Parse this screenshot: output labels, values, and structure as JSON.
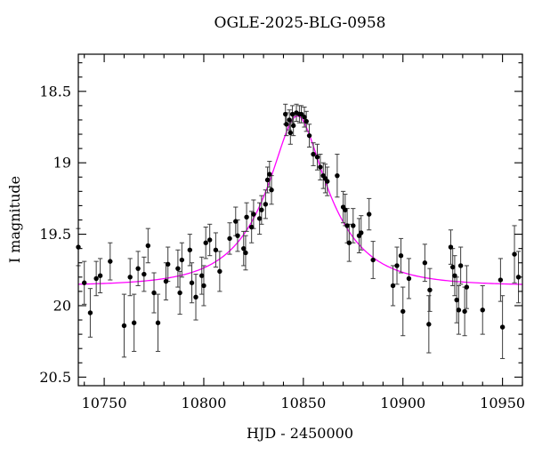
{
  "title": "OGLE-2025-BLG-0958",
  "chart_data": {
    "type": "scatter",
    "title": "OGLE-2025-BLG-0958",
    "xlabel": "HJD - 2450000",
    "ylabel": "I magnitude",
    "xlim": [
      10737,
      10960
    ],
    "ylim": [
      18.24,
      20.56
    ],
    "y_axis_inverted_magnitude": true,
    "grid": false,
    "legend": null,
    "x_major_ticks": [
      10750,
      10800,
      10850,
      10900,
      10950
    ],
    "x_major_tick_labels": [
      "10750",
      "10800",
      "10850",
      "10900",
      "10950"
    ],
    "x_minor_tick_step": 10,
    "y_major_ticks": [
      18.5,
      19.0,
      19.5,
      20.0,
      20.5
    ],
    "y_major_tick_labels": [
      "18.5",
      "19",
      "19.5",
      "20",
      "20.5"
    ],
    "y_minor_tick_step": 0.1,
    "colors": {
      "marker": "#000000",
      "errorbar": "#3c3c3c",
      "model_curve": "#ff00ff",
      "frame": "#000000",
      "background": "#ffffff"
    },
    "model": {
      "type": "paczynski_point_lens",
      "t0": 10847,
      "tE": 31,
      "u0": 0.35,
      "baseline_mag": 19.86,
      "peak_mag": 18.67,
      "sample_step_days": 1
    },
    "points_format": [
      "hjd_minus_2450000",
      "i_magnitude",
      "error_mag"
    ],
    "points": [
      [
        10737,
        19.59,
        0.13
      ],
      [
        10740,
        19.84,
        0.15
      ],
      [
        10743,
        20.05,
        0.17
      ],
      [
        10746,
        19.81,
        0.12
      ],
      [
        10748,
        19.79,
        0.12
      ],
      [
        10753,
        19.69,
        0.13
      ],
      [
        10760,
        20.14,
        0.22
      ],
      [
        10763,
        19.8,
        0.13
      ],
      [
        10765,
        20.12,
        0.2
      ],
      [
        10767,
        19.74,
        0.12
      ],
      [
        10770,
        19.78,
        0.12
      ],
      [
        10772,
        19.58,
        0.12
      ],
      [
        10775,
        19.91,
        0.14
      ],
      [
        10777,
        20.12,
        0.2
      ],
      [
        10781,
        19.83,
        0.13
      ],
      [
        10782,
        19.71,
        0.12
      ],
      [
        10787,
        19.74,
        0.13
      ],
      [
        10788,
        19.91,
        0.15
      ],
      [
        10789,
        19.68,
        0.12
      ],
      [
        10793,
        19.61,
        0.11
      ],
      [
        10794,
        19.84,
        0.14
      ],
      [
        10796,
        19.94,
        0.16
      ],
      [
        10799,
        19.79,
        0.13
      ],
      [
        10800,
        19.86,
        0.14
      ],
      [
        10801,
        19.56,
        0.11
      ],
      [
        10803,
        19.54,
        0.11
      ],
      [
        10806,
        19.61,
        0.12
      ],
      [
        10808,
        19.76,
        0.14
      ],
      [
        10813,
        19.53,
        0.11
      ],
      [
        10816,
        19.41,
        0.1
      ],
      [
        10817,
        19.51,
        0.11
      ],
      [
        10820,
        19.6,
        0.12
      ],
      [
        10821,
        19.63,
        0.12
      ],
      [
        10821.5,
        19.38,
        0.1
      ],
      [
        10824,
        19.45,
        0.11
      ],
      [
        10825,
        19.36,
        0.1
      ],
      [
        10828,
        19.39,
        0.11
      ],
      [
        10829,
        19.33,
        0.1
      ],
      [
        10831,
        19.29,
        0.1
      ],
      [
        10832,
        19.12,
        0.09
      ],
      [
        10833,
        19.08,
        0.09
      ],
      [
        10834,
        19.19,
        0.1
      ],
      [
        10841,
        18.66,
        0.07
      ],
      [
        10841.5,
        18.73,
        0.08
      ],
      [
        10843,
        18.7,
        0.07
      ],
      [
        10843.5,
        18.79,
        0.08
      ],
      [
        10844.5,
        18.66,
        0.06
      ],
      [
        10845,
        18.74,
        0.07
      ],
      [
        10846.5,
        18.65,
        0.06
      ],
      [
        10848,
        18.66,
        0.06
      ],
      [
        10849,
        18.66,
        0.06
      ],
      [
        10850.5,
        18.68,
        0.07
      ],
      [
        10851.5,
        18.71,
        0.07
      ],
      [
        10853,
        18.81,
        0.08
      ],
      [
        10855,
        18.94,
        0.08
      ],
      [
        10857,
        18.96,
        0.09
      ],
      [
        10858.5,
        19.03,
        0.09
      ],
      [
        10860,
        19.09,
        0.09
      ],
      [
        10861,
        19.11,
        0.1
      ],
      [
        10862,
        19.13,
        0.1
      ],
      [
        10867,
        19.09,
        0.15
      ],
      [
        10870,
        19.31,
        0.11
      ],
      [
        10871,
        19.33,
        0.11
      ],
      [
        10872,
        19.44,
        0.12
      ],
      [
        10873,
        19.56,
        0.13
      ],
      [
        10875,
        19.44,
        0.12
      ],
      [
        10878,
        19.51,
        0.12
      ],
      [
        10879,
        19.49,
        0.12
      ],
      [
        10883,
        19.36,
        0.11
      ],
      [
        10885,
        19.68,
        0.13
      ],
      [
        10895,
        19.86,
        0.14
      ],
      [
        10897,
        19.72,
        0.13
      ],
      [
        10899,
        19.65,
        0.12
      ],
      [
        10900,
        20.04,
        0.17
      ],
      [
        10903,
        19.81,
        0.14
      ],
      [
        10911,
        19.7,
        0.13
      ],
      [
        10913,
        20.13,
        0.2
      ],
      [
        10913.5,
        19.89,
        0.15
      ],
      [
        10924,
        19.59,
        0.12
      ],
      [
        10925,
        19.73,
        0.13
      ],
      [
        10926,
        19.79,
        0.14
      ],
      [
        10927,
        19.96,
        0.16
      ],
      [
        10928,
        20.03,
        0.17
      ],
      [
        10929,
        19.72,
        0.13
      ],
      [
        10931,
        20.04,
        0.17
      ],
      [
        10932,
        19.87,
        0.15
      ],
      [
        10940,
        20.03,
        0.17
      ],
      [
        10949,
        19.82,
        0.15
      ],
      [
        10950,
        20.15,
        0.22
      ],
      [
        10956,
        19.64,
        0.2
      ],
      [
        10958,
        19.8,
        0.18
      ]
    ]
  }
}
